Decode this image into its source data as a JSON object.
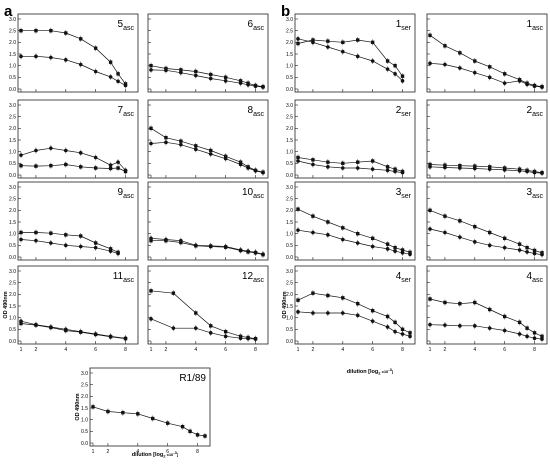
{
  "panel_letters": [
    "a",
    "b"
  ],
  "y_axis_label": "OD 490nm",
  "x_axis_label": "dilution [log",
  "x_axis_label_sub": "2",
  "x_axis_label_tail": " x10",
  "x_axis_label_sup": "-3",
  "x_axis_label_end": "]",
  "chart_data": [
    {
      "type": "line",
      "panel": "a",
      "label": "5",
      "label_sub": "asc",
      "ylim": [
        0,
        3
      ],
      "xlim": [
        1,
        8.5
      ],
      "yticks": [
        "0.0",
        "0.5",
        "1.0",
        "1.5",
        "2.0",
        "2.5",
        "3.0"
      ],
      "xticks": [
        "1",
        "2",
        "4",
        "6",
        "8"
      ],
      "series": [
        {
          "marker": "square",
          "x": [
            1,
            2,
            3,
            4,
            5,
            6,
            7,
            7.5,
            8
          ],
          "y": [
            2.5,
            2.5,
            2.5,
            2.4,
            2.15,
            1.75,
            1.15,
            0.65,
            0.22
          ]
        },
        {
          "marker": "circle",
          "x": [
            1,
            2,
            3,
            4,
            5,
            6,
            7,
            7.5,
            8
          ],
          "y": [
            1.4,
            1.4,
            1.35,
            1.25,
            1.05,
            0.75,
            0.52,
            0.33,
            0.15
          ]
        }
      ]
    },
    {
      "type": "line",
      "panel": "a",
      "label": "6",
      "label_sub": "asc",
      "ylim": [
        0,
        3
      ],
      "xlim": [
        1,
        8.5
      ],
      "series": [
        {
          "marker": "square",
          "x": [
            1,
            2,
            3,
            4,
            5,
            6,
            7,
            7.5,
            8,
            8.5
          ],
          "y": [
            1.0,
            0.88,
            0.82,
            0.75,
            0.62,
            0.5,
            0.35,
            0.25,
            0.15,
            0.1
          ]
        },
        {
          "marker": "circle",
          "x": [
            1,
            2,
            3,
            4,
            5,
            6,
            7,
            7.5,
            8,
            8.5
          ],
          "y": [
            0.82,
            0.8,
            0.7,
            0.58,
            0.45,
            0.35,
            0.25,
            0.18,
            0.12,
            0.08
          ]
        }
      ]
    },
    {
      "type": "line",
      "panel": "a",
      "label": "7",
      "label_sub": "asc",
      "ylim": [
        0,
        3
      ],
      "xlim": [
        1,
        8.5
      ],
      "series": [
        {
          "marker": "circle",
          "x": [
            1,
            2,
            3,
            4,
            5,
            6,
            7,
            7.5,
            8
          ],
          "y": [
            0.85,
            1.05,
            1.15,
            1.05,
            0.95,
            0.75,
            0.42,
            0.55,
            0.2
          ]
        },
        {
          "marker": "square",
          "x": [
            1,
            2,
            3,
            4,
            5,
            6,
            7,
            7.5,
            8
          ],
          "y": [
            0.4,
            0.38,
            0.4,
            0.45,
            0.35,
            0.3,
            0.28,
            0.3,
            0.15
          ]
        }
      ]
    },
    {
      "type": "line",
      "panel": "a",
      "label": "8",
      "label_sub": "asc",
      "ylim": [
        0,
        3
      ],
      "xlim": [
        1,
        8.5
      ],
      "series": [
        {
          "marker": "square",
          "x": [
            1,
            2,
            3,
            4,
            5,
            6,
            7,
            7.5,
            8,
            8.5
          ],
          "y": [
            2.0,
            1.6,
            1.45,
            1.25,
            1.05,
            0.8,
            0.55,
            0.35,
            0.2,
            0.12
          ]
        },
        {
          "marker": "circle",
          "x": [
            1,
            2,
            3,
            4,
            5,
            6,
            7,
            7.5,
            8,
            8.5
          ],
          "y": [
            1.35,
            1.4,
            1.3,
            1.1,
            0.9,
            0.7,
            0.45,
            0.3,
            0.18,
            0.1
          ]
        }
      ]
    },
    {
      "type": "line",
      "panel": "a",
      "label": "9",
      "label_sub": "asc",
      "ylim": [
        0,
        3
      ],
      "xlim": [
        1,
        8.5
      ],
      "series": [
        {
          "marker": "square",
          "x": [
            1,
            2,
            3,
            4,
            5,
            6,
            7,
            7.5
          ],
          "y": [
            1.05,
            1.05,
            1.02,
            0.95,
            0.9,
            0.6,
            0.35,
            0.2
          ]
        },
        {
          "marker": "circle",
          "x": [
            1,
            2,
            3,
            4,
            5,
            6,
            7,
            7.5
          ],
          "y": [
            0.75,
            0.7,
            0.6,
            0.5,
            0.45,
            0.4,
            0.25,
            0.15
          ]
        }
      ]
    },
    {
      "type": "line",
      "panel": "a",
      "label": "10",
      "label_sub": "asc",
      "ylim": [
        0,
        3
      ],
      "xlim": [
        1,
        8.5
      ],
      "series": [
        {
          "marker": "circle",
          "x": [
            1,
            2,
            3,
            4,
            5,
            6,
            7,
            7.5,
            8,
            8.5
          ],
          "y": [
            0.8,
            0.75,
            0.7,
            0.5,
            0.48,
            0.45,
            0.3,
            0.25,
            0.2,
            0.12
          ]
        },
        {
          "marker": "square",
          "x": [
            1,
            2,
            3,
            4,
            5,
            6,
            7,
            7.5,
            8,
            8.5
          ],
          "y": [
            0.7,
            0.7,
            0.62,
            0.48,
            0.45,
            0.42,
            0.28,
            0.22,
            0.18,
            0.1
          ]
        }
      ]
    },
    {
      "type": "line",
      "panel": "a",
      "label": "11",
      "label_sub": "asc",
      "ylim": [
        0,
        3
      ],
      "xlim": [
        1,
        8.5
      ],
      "series": [
        {
          "marker": "circle",
          "x": [
            1,
            2,
            3,
            4,
            5,
            6,
            7,
            8
          ],
          "y": [
            0.85,
            0.7,
            0.6,
            0.5,
            0.4,
            0.3,
            0.2,
            0.12
          ]
        },
        {
          "marker": "square",
          "x": [
            1,
            2,
            3,
            4,
            5,
            6,
            7,
            8
          ],
          "y": [
            0.75,
            0.68,
            0.58,
            0.45,
            0.38,
            0.28,
            0.18,
            0.1
          ]
        }
      ]
    },
    {
      "type": "line",
      "panel": "a",
      "label": "12",
      "label_sub": "asc",
      "ylim": [
        0,
        3
      ],
      "xlim": [
        1,
        8.5
      ],
      "series": [
        {
          "marker": "square",
          "x": [
            1,
            2.5,
            4,
            5,
            6,
            7,
            7.5,
            8
          ],
          "y": [
            2.15,
            2.05,
            1.2,
            0.65,
            0.4,
            0.2,
            0.15,
            0.1
          ]
        },
        {
          "marker": "circle",
          "x": [
            1,
            2.5,
            4,
            5,
            6,
            7,
            7.5,
            8
          ],
          "y": [
            0.95,
            0.55,
            0.55,
            0.35,
            0.2,
            0.12,
            0.1,
            0.08
          ]
        }
      ]
    },
    {
      "type": "line",
      "panel": "a",
      "label": "R1/89",
      "label_sub": "",
      "ylim": [
        0,
        3
      ],
      "xlim": [
        1,
        8.5
      ],
      "series": [
        {
          "marker": "square",
          "x": [
            1,
            2,
            3,
            4,
            5,
            6,
            7,
            7.5,
            8,
            8.5
          ],
          "y": [
            1.55,
            1.35,
            1.3,
            1.25,
            1.05,
            0.85,
            0.7,
            0.5,
            0.35,
            0.3
          ]
        }
      ]
    },
    {
      "type": "line",
      "panel": "b",
      "label": "1",
      "label_sub": "ser",
      "ylim": [
        0,
        3
      ],
      "xlim": [
        1,
        8.5
      ],
      "series": [
        {
          "marker": "square",
          "x": [
            1,
            2,
            3,
            4,
            5,
            6,
            7,
            7.5,
            8
          ],
          "y": [
            1.95,
            2.1,
            2.05,
            2.0,
            2.1,
            2.0,
            1.2,
            1.0,
            0.55
          ]
        },
        {
          "marker": "circle",
          "x": [
            1,
            2,
            3,
            4,
            5,
            6,
            7,
            7.5,
            8
          ],
          "y": [
            2.15,
            2.0,
            1.8,
            1.6,
            1.4,
            1.2,
            0.85,
            0.65,
            0.35
          ]
        }
      ]
    },
    {
      "type": "line",
      "panel": "b",
      "label": "1",
      "label_sub": "asc",
      "ylim": [
        0,
        3
      ],
      "xlim": [
        1,
        8.5
      ],
      "series": [
        {
          "marker": "square",
          "x": [
            1,
            2,
            3,
            4,
            5,
            6,
            7,
            7.5,
            8,
            8.5
          ],
          "y": [
            2.3,
            1.85,
            1.55,
            1.2,
            0.95,
            0.65,
            0.4,
            0.25,
            0.15,
            0.1
          ]
        },
        {
          "marker": "circle",
          "x": [
            1,
            2,
            3,
            4,
            5,
            6,
            7,
            7.5,
            8,
            8.5
          ],
          "y": [
            1.1,
            1.05,
            0.9,
            0.7,
            0.5,
            0.25,
            0.35,
            0.2,
            0.12,
            0.08
          ]
        }
      ]
    },
    {
      "type": "line",
      "panel": "b",
      "label": "2",
      "label_sub": "ser",
      "ylim": [
        0,
        3
      ],
      "xlim": [
        1,
        8.5
      ],
      "series": [
        {
          "marker": "square",
          "x": [
            1,
            2,
            3,
            4,
            5,
            6,
            7,
            7.5,
            8
          ],
          "y": [
            0.75,
            0.65,
            0.55,
            0.5,
            0.55,
            0.6,
            0.35,
            0.25,
            0.15
          ]
        },
        {
          "marker": "circle",
          "x": [
            1,
            2,
            3,
            4,
            5,
            6,
            7,
            7.5,
            8
          ],
          "y": [
            0.6,
            0.45,
            0.35,
            0.3,
            0.3,
            0.25,
            0.2,
            0.15,
            0.1
          ]
        }
      ]
    },
    {
      "type": "line",
      "panel": "b",
      "label": "2",
      "label_sub": "asc",
      "ylim": [
        0,
        3
      ],
      "xlim": [
        1,
        8.5
      ],
      "series": [
        {
          "marker": "square",
          "x": [
            1,
            2,
            3,
            4,
            5,
            6,
            7,
            7.5,
            8,
            8.5
          ],
          "y": [
            0.45,
            0.42,
            0.4,
            0.38,
            0.35,
            0.3,
            0.25,
            0.2,
            0.15,
            0.1
          ]
        },
        {
          "marker": "circle",
          "x": [
            1,
            2,
            3,
            4,
            5,
            6,
            7,
            7.5,
            8,
            8.5
          ],
          "y": [
            0.35,
            0.32,
            0.3,
            0.28,
            0.25,
            0.22,
            0.18,
            0.15,
            0.1,
            0.08
          ]
        }
      ]
    },
    {
      "type": "line",
      "panel": "b",
      "label": "3",
      "label_sub": "ser",
      "ylim": [
        0,
        3
      ],
      "xlim": [
        1,
        8.5
      ],
      "series": [
        {
          "marker": "square",
          "x": [
            1,
            2,
            3,
            4,
            5,
            6,
            7,
            7.5,
            8,
            8.5
          ],
          "y": [
            2.05,
            1.75,
            1.5,
            1.25,
            1.0,
            0.8,
            0.55,
            0.4,
            0.3,
            0.2
          ]
        },
        {
          "marker": "circle",
          "x": [
            1,
            2,
            3,
            4,
            5,
            6,
            7,
            7.5,
            8,
            8.5
          ],
          "y": [
            1.15,
            1.05,
            0.95,
            0.75,
            0.6,
            0.45,
            0.35,
            0.25,
            0.18,
            0.12
          ]
        }
      ]
    },
    {
      "type": "line",
      "panel": "b",
      "label": "3",
      "label_sub": "asc",
      "ylim": [
        0,
        3
      ],
      "xlim": [
        1,
        8.5
      ],
      "series": [
        {
          "marker": "square",
          "x": [
            1,
            2,
            3,
            4,
            5,
            6,
            7,
            7.5,
            8,
            8.5
          ],
          "y": [
            2.0,
            1.75,
            1.55,
            1.3,
            1.05,
            0.8,
            0.55,
            0.4,
            0.28,
            0.18
          ]
        },
        {
          "marker": "circle",
          "x": [
            1,
            2,
            3,
            4,
            5,
            6,
            7,
            7.5,
            8,
            8.5
          ],
          "y": [
            1.2,
            1.05,
            0.85,
            0.65,
            0.5,
            0.4,
            0.3,
            0.22,
            0.15,
            0.1
          ]
        }
      ]
    },
    {
      "type": "line",
      "panel": "b",
      "label": "4",
      "label_sub": "ser",
      "ylim": [
        0,
        3
      ],
      "xlim": [
        1,
        8.5
      ],
      "series": [
        {
          "marker": "square",
          "x": [
            1,
            2,
            3,
            4,
            5,
            6,
            7,
            7.5,
            8,
            8.5
          ],
          "y": [
            1.75,
            2.05,
            1.95,
            1.85,
            1.6,
            1.3,
            1.05,
            0.8,
            0.5,
            0.35
          ]
        },
        {
          "marker": "circle",
          "x": [
            1,
            2,
            3,
            4,
            5,
            6,
            7,
            7.5,
            8,
            8.5
          ],
          "y": [
            1.25,
            1.2,
            1.2,
            1.2,
            1.1,
            0.85,
            0.6,
            0.4,
            0.3,
            0.2
          ]
        }
      ]
    },
    {
      "type": "line",
      "panel": "b",
      "label": "4",
      "label_sub": "asc",
      "ylim": [
        0,
        3
      ],
      "xlim": [
        1,
        8.5
      ],
      "series": [
        {
          "marker": "square",
          "x": [
            1,
            2,
            3,
            4,
            5,
            6,
            7,
            7.5,
            8,
            8.5
          ],
          "y": [
            1.8,
            1.65,
            1.6,
            1.65,
            1.35,
            1.05,
            0.8,
            0.55,
            0.35,
            0.2
          ]
        },
        {
          "marker": "circle",
          "x": [
            1,
            2,
            3,
            4,
            5,
            6,
            7,
            7.5,
            8,
            8.5
          ],
          "y": [
            0.7,
            0.68,
            0.65,
            0.65,
            0.55,
            0.45,
            0.3,
            0.2,
            0.12,
            0.08
          ]
        }
      ]
    }
  ]
}
